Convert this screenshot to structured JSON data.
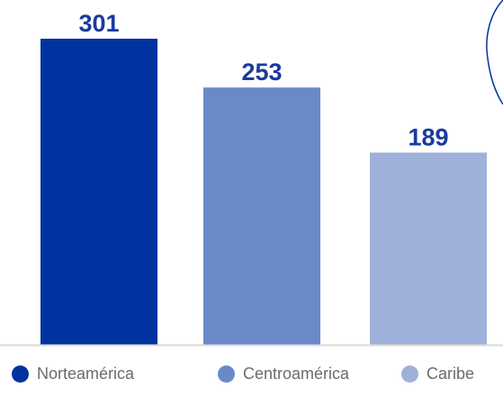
{
  "chart_data": {
    "type": "bar",
    "categories": [
      "Norteamérica",
      "Centroamérica",
      "Caribe"
    ],
    "values": [
      301,
      253,
      189
    ],
    "colors": [
      "#0033a0",
      "#6a89c8",
      "#9eb1da"
    ],
    "value_label_color": "#1a3a9c",
    "baseline_color": "#d9d9d9",
    "decoration_color": "#0033a0",
    "ylim": [
      0,
      320
    ],
    "grid": false,
    "legend_placement": "bottom",
    "title": "",
    "xlabel": "",
    "ylabel": ""
  },
  "legend": {
    "items": [
      {
        "label": "Norteamérica",
        "color": "#0033a0"
      },
      {
        "label": "Centroamérica",
        "color": "#6a89c8"
      },
      {
        "label": "Caribe",
        "color": "#9eb1da"
      }
    ]
  }
}
